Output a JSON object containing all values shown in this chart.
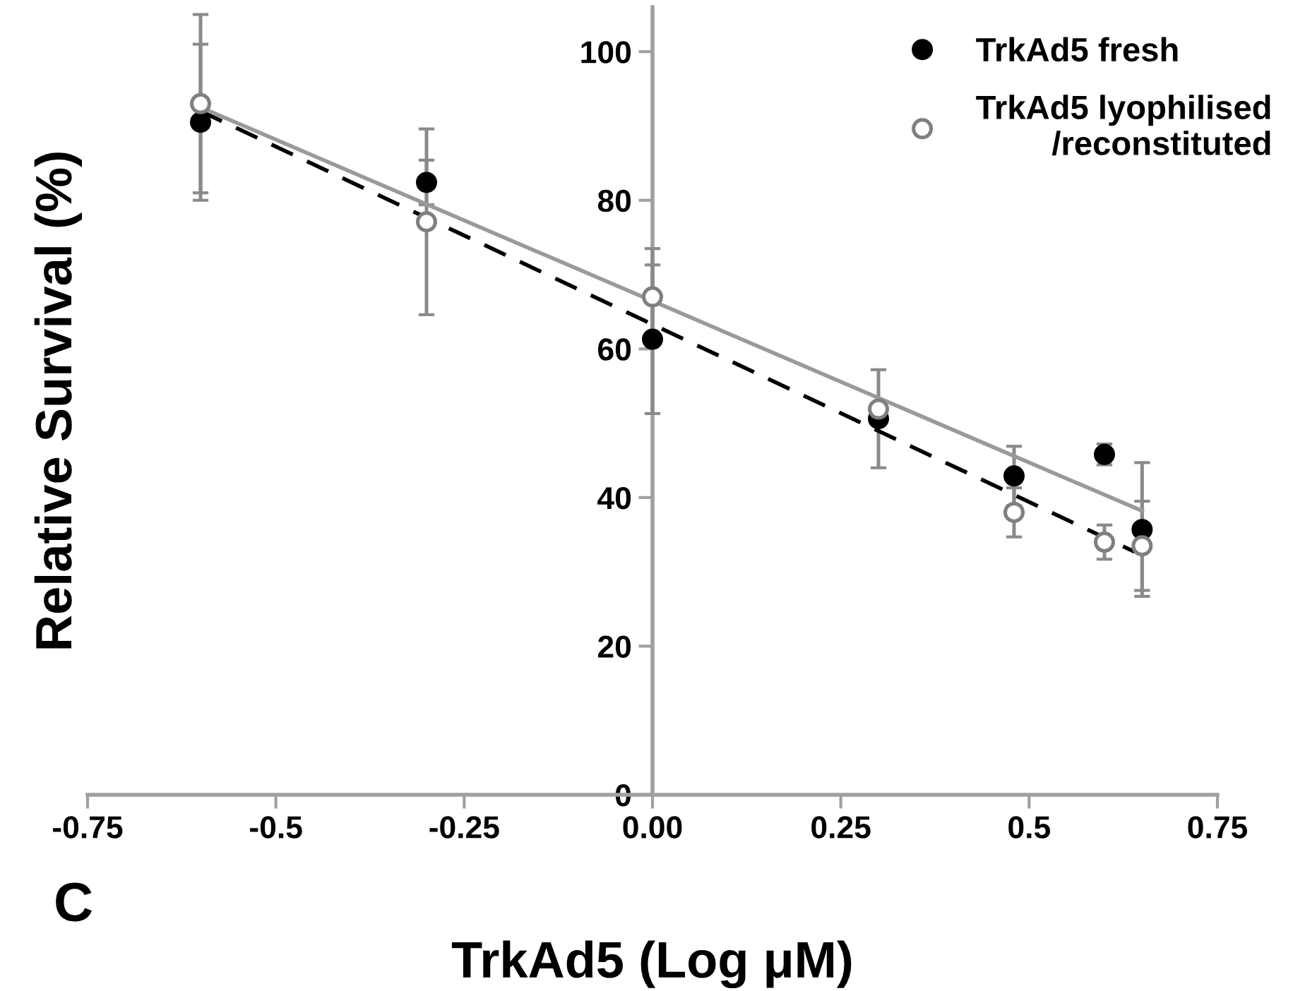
{
  "chart_data": {
    "type": "scatter",
    "xlabel": "TrkAd5 (Log μM)",
    "ylabel": "Relative Survival (%)",
    "annotations": [
      "C"
    ],
    "x": [
      -0.6,
      -0.3,
      0,
      0.3,
      0.48,
      0.6,
      0.65
    ],
    "series": [
      {
        "name": "TrkAd5 fresh",
        "color": "#000000",
        "values": [
          90.5,
          82.4,
          61.3,
          50.6,
          42.9,
          45.8,
          35.7
        ],
        "errors": [
          10.5,
          3,
          10,
          6.6,
          4,
          1.4,
          9
        ]
      },
      {
        "name": "TrkAd5 lyophilised\n/reconstituted",
        "color": "#7f7f7f",
        "values": [
          93,
          77.1,
          67,
          51.9,
          38,
          34,
          33.5
        ],
        "errors": [
          12,
          12.5,
          6.5,
          null,
          3.3,
          2.3,
          6
        ]
      },
      {
        "type": "line",
        "x": [
          -0.6,
          0.64
        ],
        "values": [
          92,
          32.7
        ],
        "color": "#000000",
        "line_style": "dashed",
        "marker": "none"
      },
      {
        "type": "line",
        "x": [
          -0.6,
          0.65
        ],
        "values": [
          92.5,
          38.2
        ],
        "color": "#9a9a9a",
        "line_style": "solid",
        "marker": "none"
      }
    ],
    "marker": "circle",
    "xlim": [
      -0.75,
      0.75
    ],
    "ylim": [
      0,
      106
    ],
    "xticks": [
      -0.75,
      -0.5,
      -0.25,
      {
        "value": 0,
        "label": "0.00"
      },
      0.25,
      0.5,
      0.75
    ],
    "yticks": [
      0,
      20,
      40,
      60,
      80,
      100
    ],
    "grid": false,
    "legend": "top right"
  }
}
